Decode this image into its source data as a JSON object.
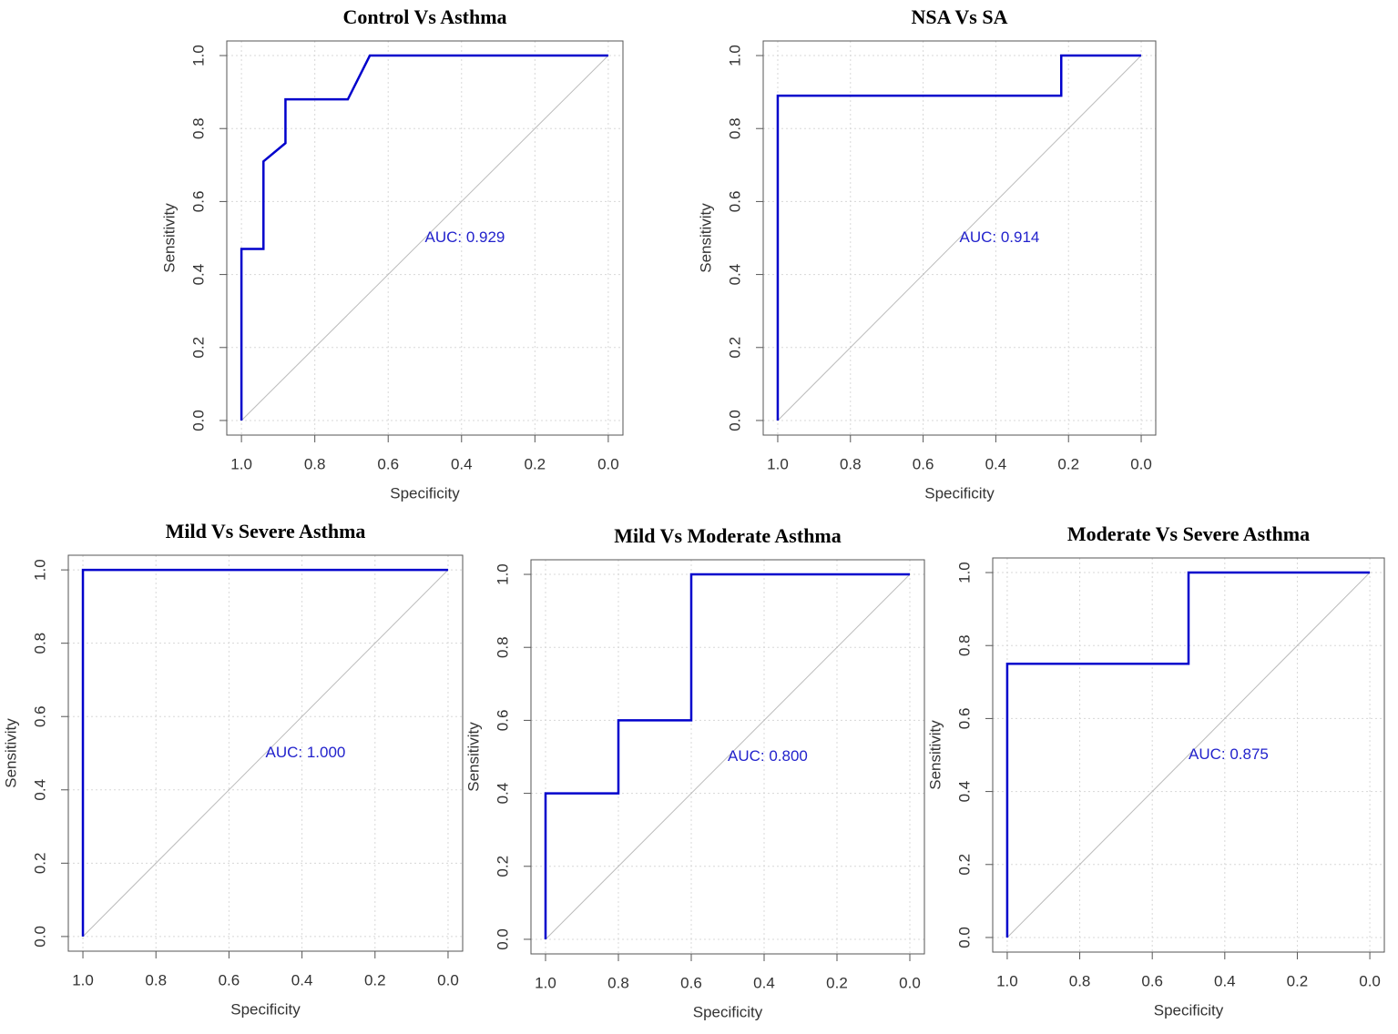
{
  "chart_data": [
    {
      "type": "line",
      "title": "Control Vs Asthma",
      "xlabel": "Specificity",
      "ylabel": "Sensitivity",
      "annotation": "AUC: 0.929",
      "x": [
        1.0,
        1.0,
        0.94,
        0.94,
        0.88,
        0.88,
        0.71,
        0.65,
        0.0
      ],
      "values": [
        0.0,
        0.47,
        0.47,
        0.71,
        0.76,
        0.88,
        0.88,
        1.0,
        1.0
      ],
      "color": "#0000cc",
      "xlim": [
        1.04,
        -0.04
      ],
      "ylim": [
        -0.04,
        1.04
      ],
      "grid": true,
      "xticks": [
        {
          "value": 1,
          "label": "1.0"
        },
        0.8,
        0.6,
        0.4,
        0.2,
        {
          "value": 0,
          "label": "0.0"
        }
      ],
      "yticks": [
        {
          "value": 0,
          "label": "0.0"
        },
        0.2,
        0.4,
        0.6,
        0.8,
        {
          "value": 1,
          "label": "1.0"
        }
      ]
    },
    {
      "type": "line",
      "title": "NSA Vs SA",
      "xlabel": "Specificity",
      "ylabel": "Sensitivity",
      "annotation": "AUC: 0.914",
      "x": [
        1.0,
        1.0,
        0.22,
        0.22,
        0.0
      ],
      "values": [
        0.0,
        0.89,
        0.89,
        1.0,
        1.0
      ],
      "color": "#0000cc",
      "xlim": [
        1.04,
        -0.04
      ],
      "ylim": [
        -0.04,
        1.04
      ],
      "grid": true,
      "xticks": [
        {
          "value": 1,
          "label": "1.0"
        },
        0.8,
        0.6,
        0.4,
        0.2,
        {
          "value": 0,
          "label": "0.0"
        }
      ],
      "yticks": [
        {
          "value": 0,
          "label": "0.0"
        },
        0.2,
        0.4,
        0.6,
        0.8,
        {
          "value": 1,
          "label": "1.0"
        }
      ]
    },
    {
      "type": "line",
      "title": "Mild Vs Severe Asthma",
      "xlabel": "Specificity",
      "ylabel": "Sensitivity",
      "annotation": "AUC: 1.000",
      "x": [
        1.0,
        1.0,
        0.0
      ],
      "values": [
        0.0,
        1.0,
        1.0
      ],
      "color": "#0000cc",
      "xlim": [
        1.04,
        -0.04
      ],
      "ylim": [
        -0.04,
        1.04
      ],
      "grid": true,
      "xticks": [
        {
          "value": 1,
          "label": "1.0"
        },
        0.8,
        0.6,
        0.4,
        0.2,
        {
          "value": 0,
          "label": "0.0"
        }
      ],
      "yticks": [
        {
          "value": 0,
          "label": "0.0"
        },
        0.2,
        0.4,
        0.6,
        0.8,
        {
          "value": 1,
          "label": "1.0"
        }
      ]
    },
    {
      "type": "line",
      "title": "Mild Vs Moderate Asthma",
      "xlabel": "Specificity",
      "ylabel": "Sensitivity",
      "annotation": "AUC: 0.800",
      "x": [
        1.0,
        1.0,
        0.8,
        0.8,
        0.6,
        0.6,
        0.0
      ],
      "values": [
        0.0,
        0.4,
        0.4,
        0.6,
        0.6,
        1.0,
        1.0
      ],
      "color": "#0000cc",
      "xlim": [
        1.04,
        -0.04
      ],
      "ylim": [
        -0.04,
        1.04
      ],
      "grid": true,
      "xticks": [
        {
          "value": 1,
          "label": "1.0"
        },
        0.8,
        0.6,
        0.4,
        0.2,
        {
          "value": 0,
          "label": "0.0"
        }
      ],
      "yticks": [
        {
          "value": 0,
          "label": "0.0"
        },
        0.2,
        0.4,
        0.6,
        0.8,
        {
          "value": 1,
          "label": "1.0"
        }
      ]
    },
    {
      "type": "line",
      "title": "Moderate Vs Severe Asthma",
      "xlabel": "Specificity",
      "ylabel": "Sensitivity",
      "annotation": "AUC: 0.875",
      "x": [
        1.0,
        1.0,
        0.5,
        0.5,
        0.0
      ],
      "values": [
        0.0,
        0.75,
        0.75,
        1.0,
        1.0
      ],
      "color": "#0000cc",
      "xlim": [
        1.04,
        -0.04
      ],
      "ylim": [
        -0.04,
        1.04
      ],
      "grid": true,
      "xticks": [
        {
          "value": 1,
          "label": "1.0"
        },
        0.8,
        0.6,
        0.4,
        0.2,
        {
          "value": 0,
          "label": "0.0"
        }
      ],
      "yticks": [
        {
          "value": 0,
          "label": "0.0"
        },
        0.2,
        0.4,
        0.6,
        0.8,
        {
          "value": 1,
          "label": "1.0"
        }
      ]
    }
  ]
}
